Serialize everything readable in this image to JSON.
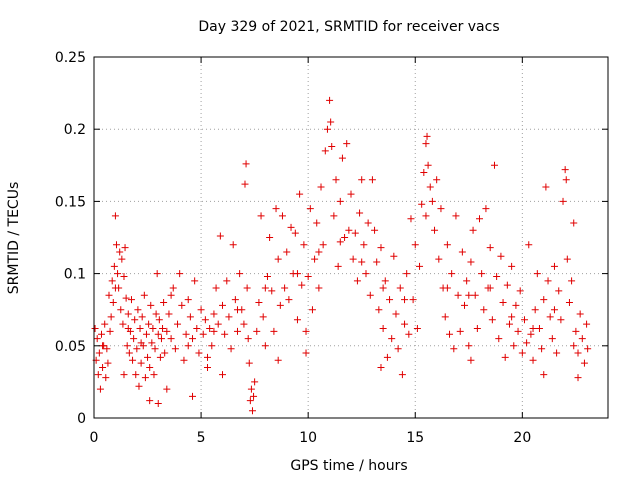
{
  "chart_data": {
    "type": "scatter",
    "title": "Day 329 of 2021, SRMTID for receiver vacs",
    "xlabel": "GPS time / hours",
    "ylabel": "SRMTID / TECUs",
    "xlim": [
      0,
      24
    ],
    "ylim": [
      0,
      0.25
    ],
    "xticks": [
      0,
      5,
      10,
      15,
      20
    ],
    "xtick_labels": [
      "0",
      "5",
      "10",
      "15",
      "20"
    ],
    "yticks": [
      0,
      0.05,
      0.1,
      0.15,
      0.2,
      0.25
    ],
    "ytick_labels": [
      "0",
      "0.05",
      "0.1",
      "0.15",
      "0.2",
      "0.25"
    ],
    "grid": true,
    "marker": "+",
    "color": "#e00000",
    "series": [
      {
        "name": "SRMTID",
        "points": [
          [
            0.05,
            0.062
          ],
          [
            0.1,
            0.04
          ],
          [
            0.15,
            0.055
          ],
          [
            0.2,
            0.03
          ],
          [
            0.25,
            0.045
          ],
          [
            0.3,
            0.02
          ],
          [
            0.35,
            0.058
          ],
          [
            0.4,
            0.035
          ],
          [
            0.45,
            0.05
          ],
          [
            0.5,
            0.065
          ],
          [
            0.55,
            0.028
          ],
          [
            0.6,
            0.048
          ],
          [
            0.65,
            0.038
          ],
          [
            0.7,
            0.085
          ],
          [
            0.75,
            0.06
          ],
          [
            0.8,
            0.07
          ],
          [
            0.85,
            0.095
          ],
          [
            0.9,
            0.08
          ],
          [
            0.95,
            0.105
          ],
          [
            1.0,
            0.14
          ],
          [
            1.05,
            0.12
          ],
          [
            1.1,
            0.1
          ],
          [
            1.15,
            0.09
          ],
          [
            1.2,
            0.115
          ],
          [
            1.25,
            0.075
          ],
          [
            1.3,
            0.11
          ],
          [
            1.35,
            0.065
          ],
          [
            1.4,
            0.098
          ],
          [
            1.45,
            0.118
          ],
          [
            1.5,
            0.083
          ],
          [
            1.55,
            0.05
          ],
          [
            1.6,
            0.072
          ],
          [
            1.65,
            0.045
          ],
          [
            1.7,
            0.06
          ],
          [
            1.75,
            0.082
          ],
          [
            1.8,
            0.04
          ],
          [
            1.85,
            0.055
          ],
          [
            1.9,
            0.068
          ],
          [
            1.95,
            0.03
          ],
          [
            2.0,
            0.048
          ],
          [
            2.05,
            0.075
          ],
          [
            2.1,
            0.022
          ],
          [
            2.15,
            0.062
          ],
          [
            2.2,
            0.038
          ],
          [
            2.25,
            0.07
          ],
          [
            2.3,
            0.05
          ],
          [
            2.35,
            0.085
          ],
          [
            2.4,
            0.028
          ],
          [
            2.45,
            0.058
          ],
          [
            2.5,
            0.042
          ],
          [
            2.55,
            0.065
          ],
          [
            2.6,
            0.035
          ],
          [
            2.65,
            0.078
          ],
          [
            2.7,
            0.052
          ],
          [
            2.75,
            0.062
          ],
          [
            2.8,
            0.03
          ],
          [
            2.85,
            0.048
          ],
          [
            2.9,
            0.072
          ],
          [
            2.95,
            0.1
          ],
          [
            3.0,
            0.058
          ],
          [
            3.05,
            0.068
          ],
          [
            3.1,
            0.042
          ],
          [
            3.15,
            0.055
          ],
          [
            3.2,
            0.062
          ],
          [
            3.25,
            0.08
          ],
          [
            3.3,
            0.045
          ],
          [
            3.4,
            0.06
          ],
          [
            3.5,
            0.072
          ],
          [
            3.6,
            0.055
          ],
          [
            3.7,
            0.09
          ],
          [
            3.8,
            0.048
          ],
          [
            3.9,
            0.065
          ],
          [
            4.0,
            0.1
          ],
          [
            4.1,
            0.078
          ],
          [
            4.2,
            0.04
          ],
          [
            4.3,
            0.058
          ],
          [
            4.4,
            0.082
          ],
          [
            4.5,
            0.07
          ],
          [
            4.6,
            0.055
          ],
          [
            4.7,
            0.095
          ],
          [
            4.8,
            0.062
          ],
          [
            4.9,
            0.045
          ],
          [
            5.0,
            0.075
          ],
          [
            5.1,
            0.058
          ],
          [
            5.2,
            0.068
          ],
          [
            5.3,
            0.042
          ],
          [
            5.4,
            0.062
          ],
          [
            5.5,
            0.05
          ],
          [
            5.6,
            0.072
          ],
          [
            5.7,
            0.09
          ],
          [
            5.8,
            0.065
          ],
          [
            5.9,
            0.126
          ],
          [
            6.0,
            0.078
          ],
          [
            6.1,
            0.058
          ],
          [
            6.2,
            0.095
          ],
          [
            6.3,
            0.07
          ],
          [
            6.4,
            0.048
          ],
          [
            6.5,
            0.12
          ],
          [
            6.6,
            0.082
          ],
          [
            6.7,
            0.06
          ],
          [
            6.8,
            0.1
          ],
          [
            6.9,
            0.075
          ],
          [
            7.0,
            0.065
          ],
          [
            7.05,
            0.162
          ],
          [
            7.1,
            0.176
          ],
          [
            7.15,
            0.09
          ],
          [
            7.2,
            0.055
          ],
          [
            7.25,
            0.038
          ],
          [
            7.3,
            0.012
          ],
          [
            7.35,
            0.02
          ],
          [
            7.4,
            0.005
          ],
          [
            7.45,
            0.015
          ],
          [
            7.5,
            0.025
          ],
          [
            7.6,
            0.06
          ],
          [
            7.7,
            0.08
          ],
          [
            7.8,
            0.14
          ],
          [
            7.9,
            0.07
          ],
          [
            8.0,
            0.05
          ],
          [
            8.1,
            0.098
          ],
          [
            8.2,
            0.125
          ],
          [
            8.3,
            0.088
          ],
          [
            8.4,
            0.06
          ],
          [
            8.5,
            0.145
          ],
          [
            8.6,
            0.11
          ],
          [
            8.7,
            0.078
          ],
          [
            8.8,
            0.14
          ],
          [
            8.9,
            0.09
          ],
          [
            9.0,
            0.115
          ],
          [
            9.1,
            0.082
          ],
          [
            9.2,
            0.132
          ],
          [
            9.3,
            0.1
          ],
          [
            9.4,
            0.128
          ],
          [
            9.5,
            0.068
          ],
          [
            9.6,
            0.155
          ],
          [
            9.7,
            0.092
          ],
          [
            9.8,
            0.12
          ],
          [
            9.9,
            0.06
          ],
          [
            10.0,
            0.098
          ],
          [
            10.1,
            0.145
          ],
          [
            10.2,
            0.075
          ],
          [
            10.3,
            0.11
          ],
          [
            10.4,
            0.135
          ],
          [
            10.5,
            0.09
          ],
          [
            10.6,
            0.16
          ],
          [
            10.7,
            0.12
          ],
          [
            10.8,
            0.185
          ],
          [
            10.9,
            0.2
          ],
          [
            11.0,
            0.22
          ],
          [
            11.05,
            0.205
          ],
          [
            11.1,
            0.188
          ],
          [
            11.2,
            0.14
          ],
          [
            11.3,
            0.165
          ],
          [
            11.4,
            0.105
          ],
          [
            11.5,
            0.15
          ],
          [
            11.6,
            0.18
          ],
          [
            11.7,
            0.125
          ],
          [
            11.8,
            0.19
          ],
          [
            11.9,
            0.13
          ],
          [
            12.0,
            0.155
          ],
          [
            12.1,
            0.11
          ],
          [
            12.2,
            0.128
          ],
          [
            12.3,
            0.095
          ],
          [
            12.4,
            0.142
          ],
          [
            12.5,
            0.165
          ],
          [
            12.6,
            0.12
          ],
          [
            12.7,
            0.1
          ],
          [
            12.8,
            0.135
          ],
          [
            12.9,
            0.085
          ],
          [
            13.0,
            0.165
          ],
          [
            13.1,
            0.13
          ],
          [
            13.2,
            0.108
          ],
          [
            13.3,
            0.075
          ],
          [
            13.4,
            0.118
          ],
          [
            13.5,
            0.062
          ],
          [
            13.6,
            0.095
          ],
          [
            13.7,
            0.042
          ],
          [
            13.8,
            0.082
          ],
          [
            13.9,
            0.055
          ],
          [
            14.0,
            0.112
          ],
          [
            14.1,
            0.072
          ],
          [
            14.2,
            0.048
          ],
          [
            14.3,
            0.09
          ],
          [
            14.4,
            0.03
          ],
          [
            14.5,
            0.065
          ],
          [
            14.6,
            0.1
          ],
          [
            14.7,
            0.058
          ],
          [
            14.8,
            0.138
          ],
          [
            14.9,
            0.082
          ],
          [
            15.0,
            0.12
          ],
          [
            15.1,
            0.062
          ],
          [
            15.2,
            0.105
          ],
          [
            15.3,
            0.148
          ],
          [
            15.4,
            0.17
          ],
          [
            15.5,
            0.19
          ],
          [
            15.55,
            0.195
          ],
          [
            15.6,
            0.175
          ],
          [
            15.7,
            0.16
          ],
          [
            15.8,
            0.15
          ],
          [
            15.9,
            0.13
          ],
          [
            16.0,
            0.165
          ],
          [
            16.1,
            0.11
          ],
          [
            16.2,
            0.145
          ],
          [
            16.3,
            0.09
          ],
          [
            16.4,
            0.07
          ],
          [
            16.5,
            0.12
          ],
          [
            16.6,
            0.058
          ],
          [
            16.7,
            0.1
          ],
          [
            16.8,
            0.048
          ],
          [
            16.9,
            0.14
          ],
          [
            17.0,
            0.085
          ],
          [
            17.1,
            0.06
          ],
          [
            17.2,
            0.115
          ],
          [
            17.3,
            0.078
          ],
          [
            17.4,
            0.095
          ],
          [
            17.5,
            0.05
          ],
          [
            17.6,
            0.108
          ],
          [
            17.7,
            0.13
          ],
          [
            17.8,
            0.085
          ],
          [
            17.9,
            0.062
          ],
          [
            18.0,
            0.138
          ],
          [
            18.1,
            0.1
          ],
          [
            18.2,
            0.075
          ],
          [
            18.3,
            0.145
          ],
          [
            18.4,
            0.09
          ],
          [
            18.5,
            0.118
          ],
          [
            18.6,
            0.068
          ],
          [
            18.7,
            0.175
          ],
          [
            18.8,
            0.098
          ],
          [
            18.9,
            0.055
          ],
          [
            19.0,
            0.112
          ],
          [
            19.1,
            0.08
          ],
          [
            19.2,
            0.042
          ],
          [
            19.3,
            0.092
          ],
          [
            19.4,
            0.065
          ],
          [
            19.5,
            0.105
          ],
          [
            19.6,
            0.05
          ],
          [
            19.7,
            0.078
          ],
          [
            19.8,
            0.06
          ],
          [
            19.9,
            0.088
          ],
          [
            20.0,
            0.045
          ],
          [
            20.1,
            0.068
          ],
          [
            20.2,
            0.052
          ],
          [
            20.3,
            0.12
          ],
          [
            20.4,
            0.058
          ],
          [
            20.5,
            0.04
          ],
          [
            20.6,
            0.075
          ],
          [
            20.7,
            0.1
          ],
          [
            20.8,
            0.062
          ],
          [
            20.9,
            0.048
          ],
          [
            21.0,
            0.082
          ],
          [
            21.1,
            0.16
          ],
          [
            21.2,
            0.095
          ],
          [
            21.3,
            0.07
          ],
          [
            21.4,
            0.055
          ],
          [
            21.5,
            0.105
          ],
          [
            21.6,
            0.045
          ],
          [
            21.7,
            0.088
          ],
          [
            21.8,
            0.068
          ],
          [
            21.9,
            0.15
          ],
          [
            22.0,
            0.172
          ],
          [
            22.05,
            0.165
          ],
          [
            22.1,
            0.11
          ],
          [
            22.2,
            0.08
          ],
          [
            22.3,
            0.095
          ],
          [
            22.4,
            0.135
          ],
          [
            22.5,
            0.06
          ],
          [
            22.6,
            0.045
          ],
          [
            22.7,
            0.072
          ],
          [
            22.8,
            0.055
          ],
          [
            22.9,
            0.038
          ],
          [
            23.0,
            0.065
          ],
          [
            23.05,
            0.048
          ],
          [
            2.6,
            0.012
          ],
          [
            3.0,
            0.01
          ],
          [
            3.4,
            0.02
          ],
          [
            4.6,
            0.015
          ],
          [
            1.4,
            0.03
          ],
          [
            5.3,
            0.035
          ],
          [
            6.0,
            0.03
          ],
          [
            8.6,
            0.04
          ],
          [
            9.9,
            0.045
          ],
          [
            13.4,
            0.035
          ],
          [
            17.6,
            0.04
          ],
          [
            21.0,
            0.03
          ],
          [
            22.6,
            0.028
          ],
          [
            0.4,
            0.05
          ],
          [
            1.0,
            0.09
          ],
          [
            1.6,
            0.062
          ],
          [
            2.2,
            0.052
          ],
          [
            3.6,
            0.085
          ],
          [
            4.4,
            0.05
          ],
          [
            5.6,
            0.06
          ],
          [
            6.7,
            0.075
          ],
          [
            8.0,
            0.09
          ],
          [
            9.5,
            0.1
          ],
          [
            10.5,
            0.115
          ],
          [
            11.5,
            0.122
          ],
          [
            12.5,
            0.108
          ],
          [
            13.5,
            0.09
          ],
          [
            14.5,
            0.082
          ],
          [
            15.5,
            0.14
          ],
          [
            16.5,
            0.09
          ],
          [
            17.5,
            0.085
          ],
          [
            18.5,
            0.09
          ],
          [
            19.5,
            0.07
          ],
          [
            20.5,
            0.062
          ],
          [
            21.5,
            0.075
          ],
          [
            22.4,
            0.05
          ]
        ]
      }
    ]
  }
}
